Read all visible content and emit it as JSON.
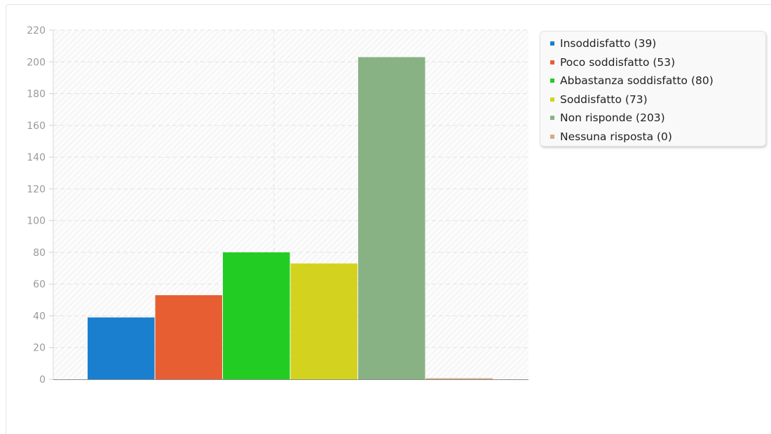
{
  "chart_data": {
    "type": "bar",
    "categories": [
      "Insoddisfatto",
      "Poco soddisfatto",
      "Abbastanza soddisfatto",
      "Soddisfatto",
      "Non risponde",
      "Nessuna risposta"
    ],
    "values": [
      39,
      53,
      80,
      73,
      203,
      0
    ],
    "colors": [
      "#1a7fcf",
      "#e85e33",
      "#22cc22",
      "#d3d31f",
      "#88b284",
      "#d2ab83"
    ],
    "legend": {
      "position": "right-top",
      "items": [
        "Insoddisfatto (39)",
        "Poco soddisfatto (53)",
        "Abbastanza soddisfatto (80)",
        "Soddisfatto (73)",
        "Non risponde (203)",
        "Nessuna risposta (0)"
      ]
    },
    "yaxis": {
      "ticks": [
        "0",
        "20",
        "40",
        "60",
        "80",
        "100",
        "120",
        "140",
        "160",
        "180",
        "200",
        "220"
      ]
    },
    "ylim": [
      0,
      220
    ],
    "grid": true,
    "title": "",
    "xlabel": "",
    "ylabel": ""
  }
}
